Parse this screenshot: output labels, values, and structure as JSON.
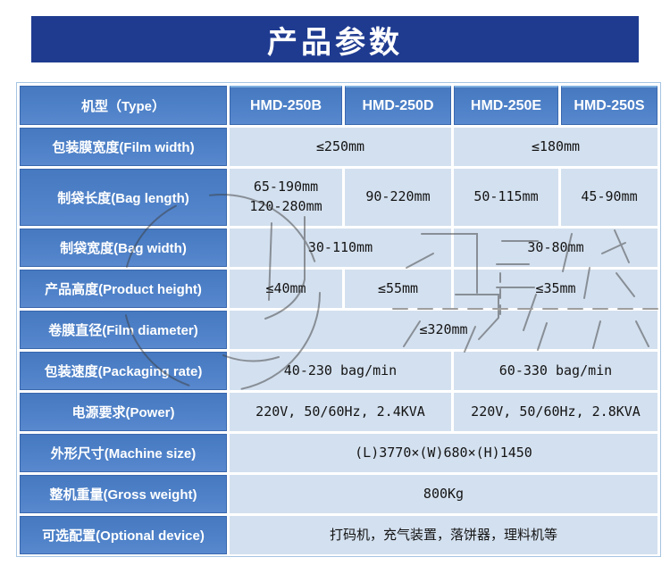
{
  "banner": {
    "title": "产品参数"
  },
  "colors": {
    "banner_bg": "#1f3b90",
    "banner_text": "#ffffff",
    "label_cell_bg": "#4e81c8",
    "label_cell_border": "#3a68ae",
    "data_cell_bg": "#d3e0ef",
    "table_border": "#a6c4e2",
    "watermark_stroke": "#3f3f3f"
  },
  "table": {
    "header": {
      "label": "机型（Type）",
      "models": [
        "HMD-250B",
        "HMD-250D",
        "HMD-250E",
        "HMD-250S"
      ]
    },
    "rows": [
      {
        "label": "包装膜宽度(Film width)",
        "cells": [
          {
            "text": "≤250mm",
            "span": 2
          },
          {
            "text": "≤180mm",
            "span": 2
          }
        ]
      },
      {
        "label": "制袋长度(Bag length)",
        "tall": true,
        "cells": [
          {
            "lines": [
              "65-190mm",
              "120-280mm"
            ],
            "span": 1
          },
          {
            "text": "90-220mm",
            "span": 1
          },
          {
            "text": "50-115mm",
            "span": 1
          },
          {
            "text": "45-90mm",
            "span": 1
          }
        ]
      },
      {
        "label": "制袋宽度(Bag width)",
        "cells": [
          {
            "text": "30-110mm",
            "span": 2
          },
          {
            "text": "30-80mm",
            "span": 2
          }
        ]
      },
      {
        "label": "产品高度(Product height)",
        "cells": [
          {
            "text": "≤40mm",
            "span": 1
          },
          {
            "text": "≤55mm",
            "span": 1
          },
          {
            "text": "≤35mm",
            "span": 2
          }
        ]
      },
      {
        "label": "卷膜直径(Film diameter)",
        "cells": [
          {
            "text": "≤320mm",
            "span": 4
          }
        ]
      },
      {
        "label": "包装速度(Packaging rate)",
        "cells": [
          {
            "text": "40-230 bag/min",
            "span": 2
          },
          {
            "text": "60-330 bag/min",
            "span": 2
          }
        ]
      },
      {
        "label": "电源要求(Power)",
        "cells": [
          {
            "text": "220V, 50/60Hz, 2.4KVA",
            "span": 2
          },
          {
            "text": "220V, 50/60Hz, 2.8KVA",
            "span": 2
          }
        ]
      },
      {
        "label": "外形尺寸(Machine size)",
        "cells": [
          {
            "text": "(L)3770×(W)680×(H)1450",
            "span": 4
          }
        ]
      },
      {
        "label": "整机重量(Gross weight)",
        "cells": [
          {
            "text": "800Kg",
            "span": 4
          }
        ]
      },
      {
        "label": "可选配置(Optional device)",
        "cells": [
          {
            "text": "打码机，充气装置，落饼器，理料机等",
            "span": 4
          }
        ]
      }
    ]
  }
}
